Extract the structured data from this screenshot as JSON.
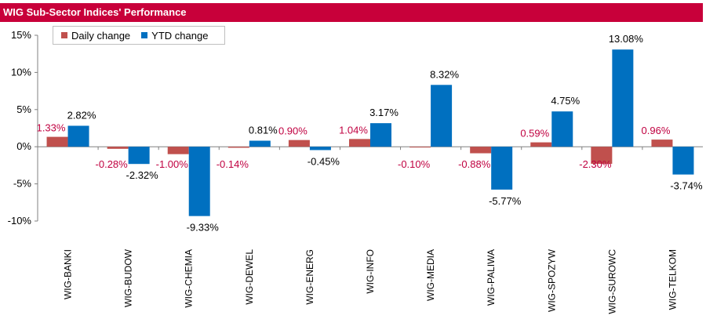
{
  "title": "WIG Sub-Sector Indices' Performance",
  "colors": {
    "title_bg": "#c8003a",
    "daily": "#c0504d",
    "ytd": "#0070c0",
    "daily_label": "#c00040",
    "ytd_label": "#000000"
  },
  "chart_data": {
    "type": "bar",
    "title": "WIG Sub-Sector Indices' Performance",
    "xlabel": "",
    "ylabel": "",
    "ylim": [
      -10,
      15
    ],
    "y_ticks": [
      "15%",
      "10%",
      "5%",
      "0%",
      "-5%",
      "-10%"
    ],
    "y_tick_values": [
      15,
      10,
      5,
      0,
      -5,
      -10
    ],
    "legend_position": "top-left",
    "grid": false,
    "categories": [
      "WIG-BANKI",
      "WIG-BUDOW",
      "WIG-CHEMIA",
      "WIG-DEWEL",
      "WIG-ENERG",
      "WIG-INFO",
      "WIG-MEDIA",
      "WIG-PALIWA",
      "WIG-SPOZYW",
      "WIG-SUROWC",
      "WIG-TELKOM"
    ],
    "series": [
      {
        "name": "Daily change",
        "values": [
          1.33,
          -0.28,
          -1.0,
          -0.14,
          0.9,
          1.04,
          -0.1,
          -0.88,
          0.59,
          -2.3,
          0.96
        ],
        "labels": [
          "1.33%",
          "-0.28%",
          "-1.00%",
          "-0.14%",
          "0.90%",
          "1.04%",
          "-0.10%",
          "-0.88%",
          "0.59%",
          "-2.30%",
          "0.96%"
        ]
      },
      {
        "name": "YTD change",
        "values": [
          2.82,
          -2.32,
          -9.33,
          0.81,
          -0.45,
          3.17,
          8.32,
          -5.77,
          4.75,
          13.08,
          -3.74
        ],
        "labels": [
          "2.82%",
          "-2.32%",
          "-9.33%",
          "0.81%",
          "-0.45%",
          "3.17%",
          "8.32%",
          "-5.77%",
          "4.75%",
          "13.08%",
          "-3.74%"
        ]
      }
    ]
  }
}
